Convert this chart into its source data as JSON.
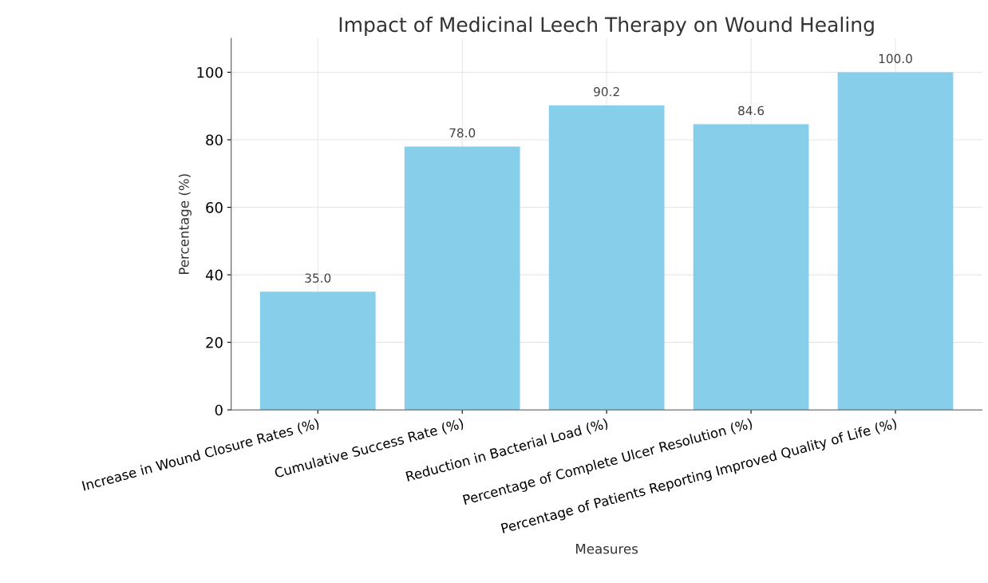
{
  "chart_data": {
    "type": "bar",
    "title": "Impact of Medicinal Leech Therapy on Wound Healing",
    "xlabel": "Measures",
    "ylabel": "Percentage (%)",
    "categories": [
      "Increase in Wound Closure Rates (%)",
      "Cumulative Success Rate (%)",
      "Reduction in Bacterial Load (%)",
      "Percentage of Complete Ulcer Resolution (%)",
      "Percentage of Patients Reporting Improved Quality of Life (%)"
    ],
    "values": [
      35.0,
      78.0,
      90.2,
      84.6,
      100.0
    ],
    "value_labels": [
      "35.0",
      "78.0",
      "90.2",
      "84.6",
      "100.0"
    ],
    "color": "#87ceeb",
    "ylim": [
      0,
      110
    ],
    "yticks": [
      0,
      20,
      40,
      60,
      80,
      100
    ],
    "grid": true,
    "legend": false
  }
}
